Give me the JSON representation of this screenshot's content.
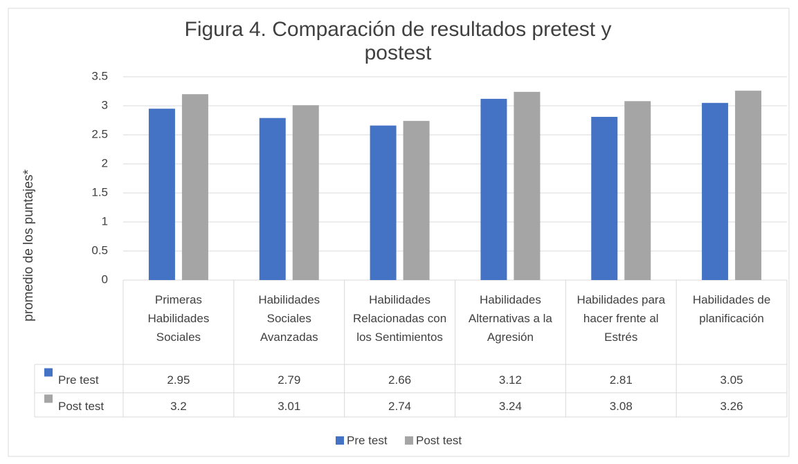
{
  "chart_data": {
    "type": "bar",
    "title": "Figura 4. Comparación de resultados pretest y postest",
    "y_label": "promedio de los puntajes*",
    "categories": [
      "Primeras Habilidades Sociales",
      "Habilidades Sociales Avanzadas",
      "Habilidades Relacionadas con los Sentimientos",
      "Habilidades Alternativas a la Agresión",
      "Habilidades para hacer frente al Estrés",
      "Habilidades de planificación"
    ],
    "series": [
      {
        "name": "Pre test",
        "color": "#4472c4",
        "values": [
          2.95,
          2.79,
          2.66,
          3.12,
          2.81,
          3.05
        ]
      },
      {
        "name": "Post test",
        "color": "#a5a5a5",
        "values": [
          3.2,
          3.01,
          2.74,
          3.24,
          3.08,
          3.26
        ]
      }
    ],
    "ylim": [
      0,
      3.5
    ],
    "yticks": [
      0,
      0.5,
      1,
      1.5,
      2,
      2.5,
      3,
      3.5
    ],
    "grid": true,
    "legend": "bottom",
    "data_table": true
  }
}
